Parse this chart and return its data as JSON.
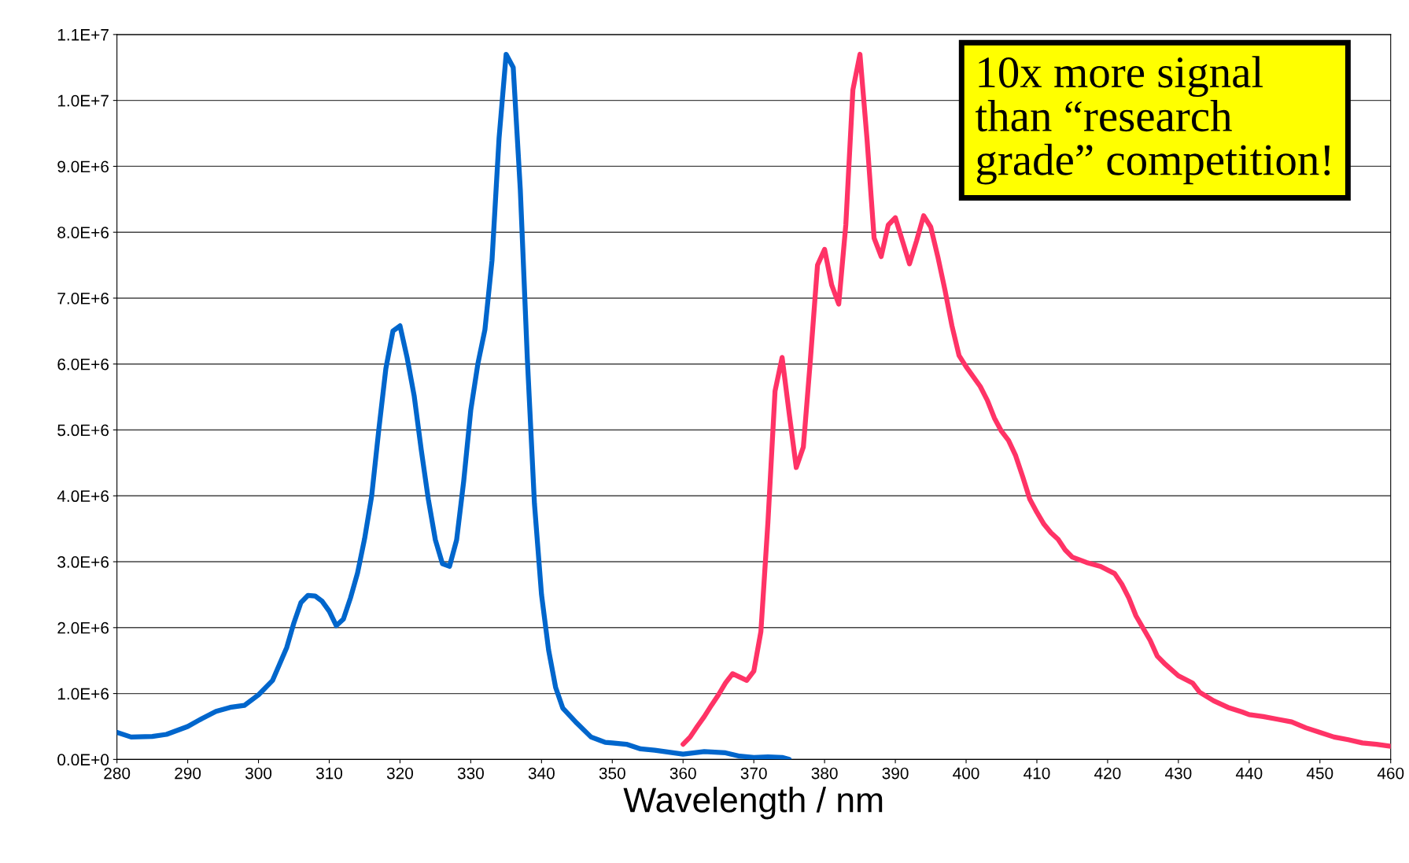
{
  "chart_data": {
    "type": "line",
    "xlabel": "Wavelength / nm",
    "annotations": [
      "10x more signal\nthan “research\ngrade” competition!"
    ],
    "xlim": [
      280,
      460
    ],
    "xticks": [
      280,
      290,
      300,
      310,
      320,
      330,
      340,
      350,
      360,
      370,
      380,
      390,
      400,
      410,
      420,
      430,
      440,
      450,
      460
    ],
    "ylim": [
      0,
      11000000
    ],
    "yticks": [
      {
        "value": 0,
        "label": "0.0E+0"
      },
      {
        "value": 1000000,
        "label": "1.0E+6"
      },
      {
        "value": 2000000,
        "label": "2.0E+6"
      },
      {
        "value": 3000000,
        "label": "3.0E+6"
      },
      {
        "value": 4000000,
        "label": "4.0E+6"
      },
      {
        "value": 5000000,
        "label": "5.0E+6"
      },
      {
        "value": 6000000,
        "label": "6.0E+6"
      },
      {
        "value": 7000000,
        "label": "7.0E+6"
      },
      {
        "value": 8000000,
        "label": "8.0E+6"
      },
      {
        "value": 9000000,
        "label": "9.0E+6"
      },
      {
        "value": 10000000,
        "label": "1.0E+7"
      },
      {
        "value": 11000000,
        "label": "1.1E+7"
      }
    ],
    "grid": "y",
    "marker": "none",
    "line_style": "solid",
    "series": [
      {
        "color": "#0066cc",
        "x": [
          280,
          282,
          285,
          287,
          290,
          292,
          294,
          296,
          298,
          300,
          302,
          304,
          305,
          306,
          307,
          308,
          309,
          310,
          311,
          312,
          313,
          314,
          315,
          316,
          317,
          318,
          319,
          320,
          321,
          322,
          323,
          324,
          325,
          326,
          327,
          328,
          329,
          330,
          331,
          332,
          333,
          334,
          335,
          336,
          337,
          338,
          339,
          340,
          341,
          342,
          343,
          345,
          347,
          349,
          350,
          352,
          354,
          356,
          358,
          360,
          363,
          366,
          368,
          370,
          372,
          374,
          375
        ],
        "values": [
          410000,
          340000,
          350000,
          380000,
          500000,
          620000,
          730000,
          790000,
          820000,
          980000,
          1200000,
          1700000,
          2070000,
          2380000,
          2490000,
          2480000,
          2400000,
          2250000,
          2030000,
          2130000,
          2450000,
          2830000,
          3350000,
          4000000,
          5000000,
          5930000,
          6500000,
          6580000,
          6100000,
          5520000,
          4700000,
          3950000,
          3330000,
          2970000,
          2930000,
          3330000,
          4220000,
          5300000,
          6000000,
          6520000,
          7570000,
          9430000,
          10700000,
          10500000,
          8650000,
          6070000,
          3880000,
          2500000,
          1660000,
          1090000,
          780000,
          550000,
          340000,
          260000,
          250000,
          230000,
          160000,
          140000,
          110000,
          80000,
          120000,
          100000,
          50000,
          30000,
          40000,
          30000,
          0
        ]
      },
      {
        "color": "#ff3366",
        "x": [
          360,
          361,
          362,
          363,
          364,
          365,
          366,
          367,
          368,
          369,
          370,
          371,
          372,
          373,
          374,
          375,
          376,
          377,
          378,
          379,
          380,
          381,
          382,
          383,
          384,
          385,
          386,
          387,
          388,
          389,
          390,
          391,
          392,
          393,
          394,
          395,
          396,
          397,
          398,
          399,
          400,
          402,
          403,
          404,
          405,
          406,
          407,
          408,
          409,
          410,
          411,
          412,
          413,
          414,
          415,
          417,
          419,
          421,
          422,
          423,
          424,
          426,
          427,
          428,
          430,
          432,
          433,
          435,
          437,
          439,
          440,
          442,
          444,
          446,
          448,
          450,
          452,
          454,
          456,
          458,
          460
        ],
        "values": [
          230000,
          340000,
          500000,
          650000,
          820000,
          980000,
          1160000,
          1300000,
          1250000,
          1200000,
          1340000,
          1940000,
          3610000,
          5590000,
          6100000,
          5250000,
          4430000,
          4740000,
          6070000,
          7500000,
          7740000,
          7200000,
          6910000,
          8110000,
          10160000,
          10700000,
          9410000,
          7910000,
          7630000,
          8110000,
          8220000,
          7870000,
          7520000,
          7870000,
          8250000,
          8080000,
          7630000,
          7130000,
          6580000,
          6130000,
          5960000,
          5660000,
          5450000,
          5180000,
          4980000,
          4840000,
          4610000,
          4290000,
          3950000,
          3750000,
          3570000,
          3440000,
          3340000,
          3180000,
          3070000,
          2990000,
          2930000,
          2820000,
          2660000,
          2450000,
          2180000,
          1810000,
          1570000,
          1460000,
          1270000,
          1160000,
          1020000,
          890000,
          790000,
          720000,
          680000,
          650000,
          610000,
          570000,
          480000,
          410000,
          340000,
          300000,
          250000,
          230000,
          200000
        ]
      }
    ]
  }
}
